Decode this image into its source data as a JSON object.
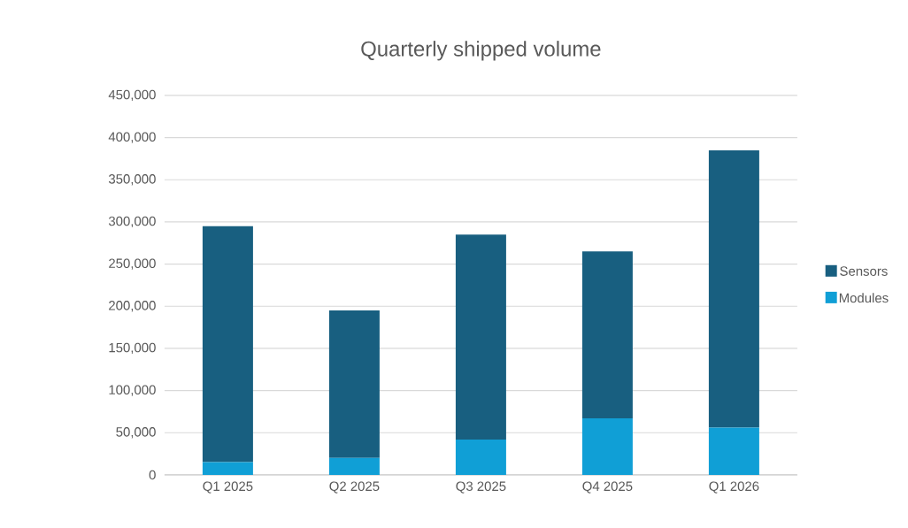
{
  "chart_data": {
    "type": "bar",
    "title": "Quarterly shipped volume",
    "stacked": true,
    "categories": [
      "Q1 2025",
      "Q2 2025",
      "Q3 2025",
      "Q4 2025",
      "Q1 2026"
    ],
    "series": [
      {
        "name": "Modules",
        "color": "#109fd6",
        "values": [
          15000,
          20000,
          42000,
          67000,
          56000
        ]
      },
      {
        "name": "Sensors",
        "color": "#185f80",
        "values": [
          280000,
          175000,
          243000,
          198000,
          329000
        ]
      }
    ],
    "ylim": [
      0,
      450000
    ],
    "yticks": [
      {
        "value": 0,
        "label": "0"
      },
      {
        "value": 50000,
        "label": "50,000"
      },
      {
        "value": 100000,
        "label": "100,000"
      },
      {
        "value": 150000,
        "label": "150,000"
      },
      {
        "value": 200000,
        "label": "200,000"
      },
      {
        "value": 250000,
        "label": "250,000"
      },
      {
        "value": 300000,
        "label": "300,000"
      },
      {
        "value": 350000,
        "label": "350,000"
      },
      {
        "value": 400000,
        "label": "400,000"
      },
      {
        "value": 450000,
        "label": "450,000"
      }
    ],
    "grid": "y",
    "legend": "right"
  }
}
